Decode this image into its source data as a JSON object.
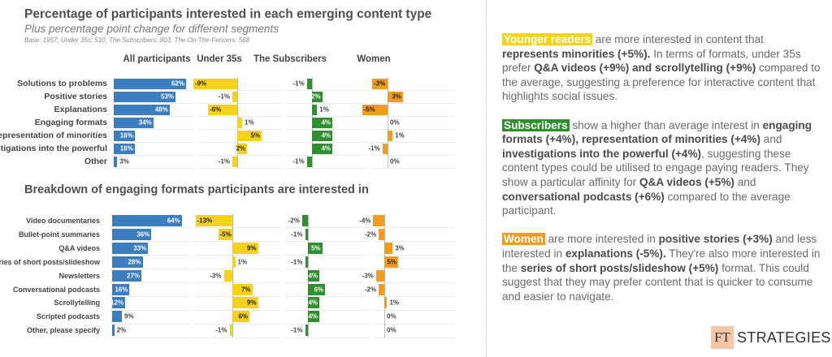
{
  "colors": {
    "all": "#3b7dbf",
    "under35": "#f5d31a",
    "subscribers": "#2f8f2f",
    "women": "#f39b1e"
  },
  "chart_data": [
    {
      "type": "bar",
      "title": "Percentage of participants interested in each emerging content type",
      "subtitle": "Plus percentage point change for different segments",
      "note": "Base: 1957, Under 35s: 510, The Subscribers: 803, The On-The-Fencers: 568",
      "categories": [
        "Solutions to problems",
        "Positive stories",
        "Explanations",
        "Engaging formats",
        "Representation of minorities",
        "Investigations into the powerful",
        "Other"
      ],
      "series": [
        {
          "name": "All participants",
          "values": [
            62,
            53,
            48,
            34,
            18,
            18,
            3
          ]
        },
        {
          "name": "Under 35s",
          "values": [
            -9,
            -1,
            -6,
            1,
            5,
            2,
            -1
          ]
        },
        {
          "name": "The Subscribers",
          "values": [
            -1,
            2,
            1,
            4,
            4,
            4,
            -1
          ]
        },
        {
          "name": "Women",
          "values": [
            -3,
            3,
            -5,
            0,
            1,
            -1,
            0
          ]
        }
      ]
    },
    {
      "type": "bar",
      "title": "Breakdown of engaging formats participants are interested in",
      "categories": [
        "Video documentaries",
        "Bullet-point summaries",
        "Q&A videos",
        "Series of short posts/slideshow",
        "Newsletters",
        "Conversational podcasts",
        "Scrollytelling",
        "Scripted podcasts",
        "Other, please specify"
      ],
      "series": [
        {
          "name": "All participants",
          "values": [
            64,
            36,
            33,
            28,
            27,
            16,
            12,
            9,
            2
          ]
        },
        {
          "name": "Under 35s",
          "values": [
            -13,
            -5,
            9,
            1,
            -3,
            7,
            9,
            6,
            -1
          ]
        },
        {
          "name": "The Subscribers",
          "values": [
            -2,
            -1,
            5,
            -1,
            4,
            6,
            4,
            4,
            -1
          ]
        },
        {
          "name": "Women",
          "values": [
            -4,
            -2,
            3,
            5,
            -3,
            -2,
            1,
            0,
            0
          ]
        }
      ]
    }
  ],
  "notes": [
    {
      "highlight": "Younger readers",
      "color": "under35",
      "segments": [
        {
          "t": " are more interested in content that "
        },
        {
          "t": "represents minorities (+5%).",
          "b": true
        },
        {
          "t": " In terms of formats, under 35s prefer "
        },
        {
          "t": "Q&A videos (+9%) and scrollytelling (+9%)",
          "b": true
        },
        {
          "t": " compared to the average, suggesting a preference for interactive content that highlights social issues."
        }
      ]
    },
    {
      "highlight": "Subscribers",
      "color": "subscribers",
      "segments": [
        {
          "t": " show a higher than average interest in "
        },
        {
          "t": "engaging formats (+4%), representation of minorities (+4%)",
          "b": true
        },
        {
          "t": " and "
        },
        {
          "t": "investigations into the powerful (+4%)",
          "b": true
        },
        {
          "t": ", suggesting these content types could be utilised to engage paying readers. They show a particular affinity for "
        },
        {
          "t": "Q&A videos (+5%)",
          "b": true
        },
        {
          "t": " and "
        },
        {
          "t": "conversational podcasts (+6%)",
          "b": true
        },
        {
          "t": " compared to the average participant."
        }
      ]
    },
    {
      "highlight": "Women",
      "color": "women",
      "segments": [
        {
          "t": " are more interested in "
        },
        {
          "t": "positive stories (+3%)",
          "b": true
        },
        {
          "t": " and less interested in "
        },
        {
          "t": "explanations (-5%).",
          "b": true
        },
        {
          "t": " They're also more interested in the "
        },
        {
          "t": "series of short posts/slideshow (+5%)",
          "b": true
        },
        {
          "t": " format. This could suggest that they may prefer content that is quicker to consume and easier to navigate."
        }
      ]
    }
  ],
  "logo": {
    "mark": "FT",
    "text": "STRATEGIES"
  }
}
